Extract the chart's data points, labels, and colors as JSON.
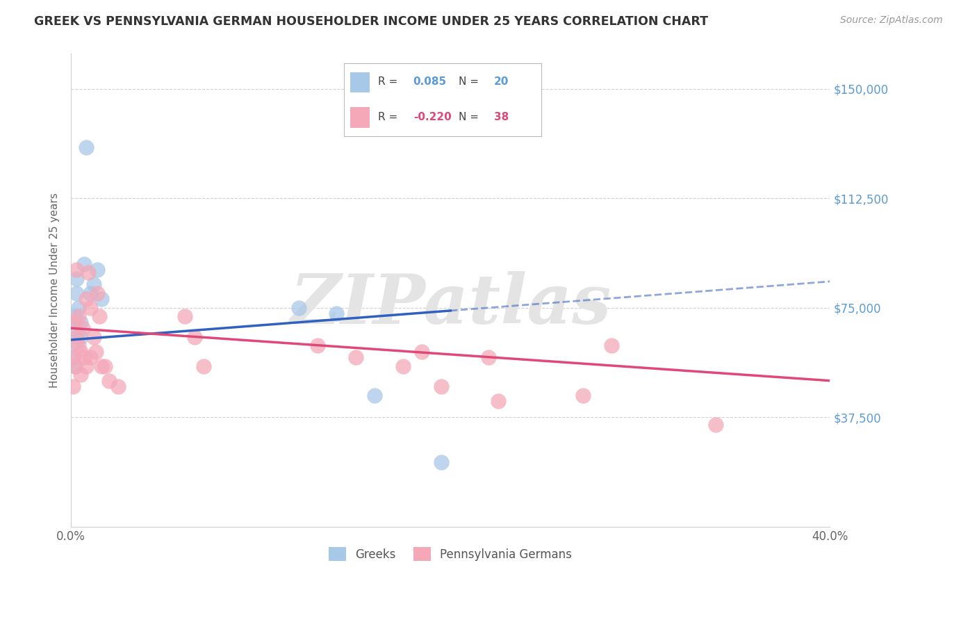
{
  "title": "GREEK VS PENNSYLVANIA GERMAN HOUSEHOLDER INCOME UNDER 25 YEARS CORRELATION CHART",
  "source": "Source: ZipAtlas.com",
  "ylabel": "Householder Income Under 25 years",
  "yticks": [
    0,
    37500,
    75000,
    112500,
    150000
  ],
  "ytick_labels": [
    "",
    "$37,500",
    "$75,000",
    "$112,500",
    "$150,000"
  ],
  "xmin": 0.0,
  "xmax": 0.4,
  "ymin": 0,
  "ymax": 162000,
  "greek_R": 0.085,
  "greek_N": 20,
  "pg_R": -0.22,
  "pg_N": 38,
  "greek_color": "#a8c8e8",
  "pg_color": "#f4a8b8",
  "greek_line_color": "#3060c0",
  "pg_line_color": "#e04878",
  "watermark": "ZIPatlas",
  "background_color": "#ffffff",
  "plot_bg_color": "#ffffff",
  "greek_x": [
    0.001,
    0.001,
    0.002,
    0.002,
    0.002,
    0.003,
    0.003,
    0.004,
    0.005,
    0.005,
    0.007,
    0.008,
    0.01,
    0.012,
    0.014,
    0.016,
    0.12,
    0.14,
    0.16,
    0.195
  ],
  "greek_y": [
    68000,
    58000,
    72000,
    63000,
    55000,
    80000,
    85000,
    75000,
    70000,
    65000,
    90000,
    130000,
    80000,
    83000,
    88000,
    78000,
    75000,
    73000,
    45000,
    22000
  ],
  "pg_x": [
    0.001,
    0.001,
    0.002,
    0.002,
    0.003,
    0.003,
    0.004,
    0.004,
    0.005,
    0.005,
    0.006,
    0.007,
    0.008,
    0.008,
    0.009,
    0.01,
    0.01,
    0.012,
    0.013,
    0.014,
    0.015,
    0.016,
    0.018,
    0.02,
    0.025,
    0.06,
    0.065,
    0.07,
    0.13,
    0.15,
    0.175,
    0.185,
    0.195,
    0.22,
    0.225,
    0.27,
    0.285,
    0.34
  ],
  "pg_y": [
    58000,
    48000,
    70000,
    55000,
    88000,
    65000,
    72000,
    62000,
    60000,
    52000,
    68000,
    58000,
    78000,
    55000,
    87000,
    75000,
    58000,
    65000,
    60000,
    80000,
    72000,
    55000,
    55000,
    50000,
    48000,
    72000,
    65000,
    55000,
    62000,
    58000,
    55000,
    60000,
    48000,
    58000,
    43000,
    45000,
    62000,
    35000
  ],
  "greek_line_x0": 0.0,
  "greek_line_y0": 64000,
  "greek_line_x1": 0.2,
  "greek_line_y1": 74000,
  "pg_line_x0": 0.0,
  "pg_line_y0": 68000,
  "pg_line_x1": 0.4,
  "pg_line_y1": 50000
}
